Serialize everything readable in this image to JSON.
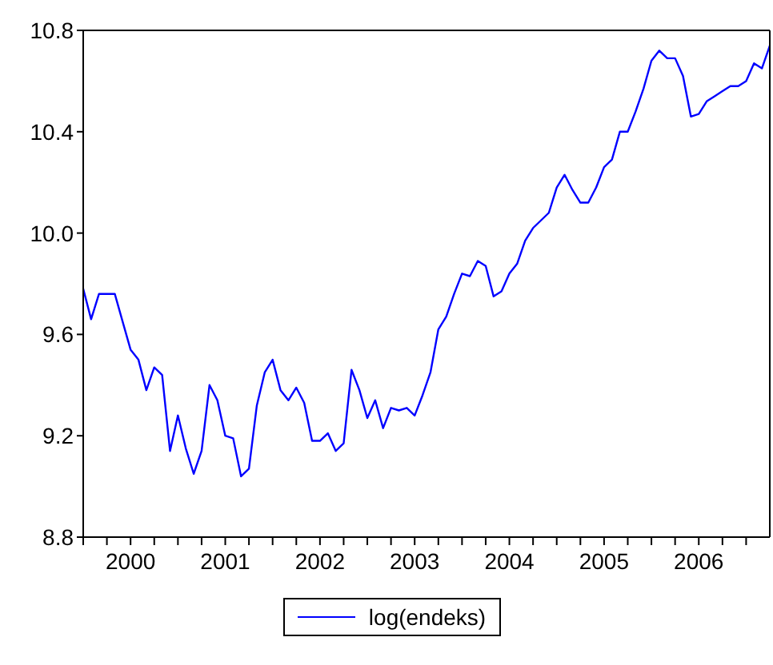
{
  "chart_data": {
    "type": "line",
    "x": [
      "2000-01",
      "2000-02",
      "2000-03",
      "2000-04",
      "2000-05",
      "2000-06",
      "2000-07",
      "2000-08",
      "2000-09",
      "2000-10",
      "2000-11",
      "2000-12",
      "2001-01",
      "2001-02",
      "2001-03",
      "2001-04",
      "2001-05",
      "2001-06",
      "2001-07",
      "2001-08",
      "2001-09",
      "2001-10",
      "2001-11",
      "2001-12",
      "2002-01",
      "2002-02",
      "2002-03",
      "2002-04",
      "2002-05",
      "2002-06",
      "2002-07",
      "2002-08",
      "2002-09",
      "2002-10",
      "2002-11",
      "2002-12",
      "2003-01",
      "2003-02",
      "2003-03",
      "2003-04",
      "2003-05",
      "2003-06",
      "2003-07",
      "2003-08",
      "2003-09",
      "2003-10",
      "2003-11",
      "2003-12",
      "2004-01",
      "2004-02",
      "2004-03",
      "2004-04",
      "2004-05",
      "2004-06",
      "2004-07",
      "2004-08",
      "2004-09",
      "2004-10",
      "2004-11",
      "2004-12",
      "2005-01",
      "2005-02",
      "2005-03",
      "2005-04",
      "2005-05",
      "2005-06",
      "2005-07",
      "2005-08",
      "2005-09",
      "2005-10",
      "2005-11",
      "2005-12",
      "2006-01",
      "2006-02",
      "2006-03",
      "2006-04",
      "2006-05",
      "2006-06",
      "2006-07",
      "2006-08",
      "2006-09",
      "2006-10",
      "2006-11",
      "2006-12",
      "2007-01",
      "2007-02",
      "2007-03",
      "2007-04"
    ],
    "series": [
      {
        "name": "log(endeks)",
        "color": "#0000ff",
        "values": [
          9.78,
          9.66,
          9.76,
          9.76,
          9.76,
          9.65,
          9.54,
          9.5,
          9.38,
          9.47,
          9.44,
          9.14,
          9.28,
          9.15,
          9.05,
          9.14,
          9.4,
          9.34,
          9.2,
          9.19,
          9.04,
          9.07,
          9.32,
          9.45,
          9.5,
          9.38,
          9.34,
          9.39,
          9.33,
          9.18,
          9.18,
          9.21,
          9.14,
          9.17,
          9.46,
          9.38,
          9.27,
          9.34,
          9.23,
          9.31,
          9.3,
          9.31,
          9.28,
          9.36,
          9.45,
          9.62,
          9.67,
          9.76,
          9.84,
          9.83,
          9.89,
          9.87,
          9.75,
          9.77,
          9.84,
          9.88,
          9.97,
          10.02,
          10.05,
          10.08,
          10.18,
          10.23,
          10.17,
          10.12,
          10.12,
          10.18,
          10.26,
          10.29,
          10.4,
          10.4,
          10.48,
          10.57,
          10.68,
          10.72,
          10.69,
          10.69,
          10.62,
          10.46,
          10.47,
          10.52,
          10.54,
          10.56,
          10.58,
          10.58,
          10.6,
          10.67,
          10.65,
          10.74
        ]
      }
    ],
    "xlim": [
      "2000-01",
      "2007-04"
    ],
    "xticks": [
      {
        "value": "2000-01",
        "label": null
      },
      {
        "value": "2000-04",
        "label": null
      },
      {
        "value": "2000-07",
        "label": "2000"
      },
      {
        "value": "2000-10",
        "label": null
      },
      {
        "value": "2001-01",
        "label": null
      },
      {
        "value": "2001-04",
        "label": null
      },
      {
        "value": "2001-07",
        "label": "2001"
      },
      {
        "value": "2001-10",
        "label": null
      },
      {
        "value": "2002-01",
        "label": null
      },
      {
        "value": "2002-04",
        "label": null
      },
      {
        "value": "2002-07",
        "label": "2002"
      },
      {
        "value": "2002-10",
        "label": null
      },
      {
        "value": "2003-01",
        "label": null
      },
      {
        "value": "2003-04",
        "label": null
      },
      {
        "value": "2003-07",
        "label": "2003"
      },
      {
        "value": "2003-10",
        "label": null
      },
      {
        "value": "2004-01",
        "label": null
      },
      {
        "value": "2004-04",
        "label": null
      },
      {
        "value": "2004-07",
        "label": "2004"
      },
      {
        "value": "2004-10",
        "label": null
      },
      {
        "value": "2005-01",
        "label": null
      },
      {
        "value": "2005-04",
        "label": null
      },
      {
        "value": "2005-07",
        "label": "2005"
      },
      {
        "value": "2005-10",
        "label": null
      },
      {
        "value": "2006-01",
        "label": null
      },
      {
        "value": "2006-04",
        "label": null
      },
      {
        "value": "2006-07",
        "label": "2006"
      },
      {
        "value": "2006-10",
        "label": null
      },
      {
        "value": "2007-01",
        "label": null
      }
    ],
    "ylim": [
      8.8,
      10.8
    ],
    "yticks": [
      8.8,
      9.2,
      9.6,
      {
        "value": 10.0,
        "label": "10.0"
      },
      10.4,
      10.8
    ],
    "grid": false,
    "legend": "bottom",
    "marker": "none",
    "line_style": "solid"
  }
}
